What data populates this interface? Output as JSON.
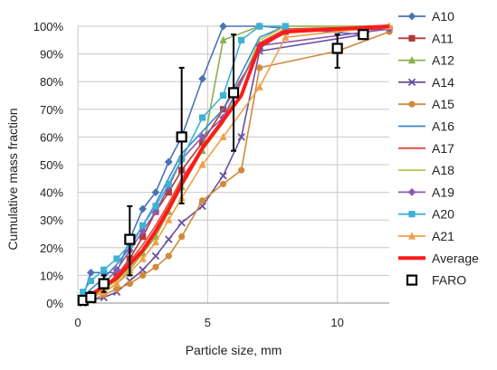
{
  "chart_data": {
    "type": "line",
    "title": "",
    "xlabel": "Particle size, mm",
    "ylabel": "Cumulative mass fraction",
    "xlim": [
      0,
      12
    ],
    "ylim": [
      0,
      100
    ],
    "x_ticks": [
      0,
      5,
      10
    ],
    "x_tick_labels": [
      "0",
      "5",
      "10"
    ],
    "y_ticks": [
      0,
      10,
      20,
      30,
      40,
      50,
      60,
      70,
      80,
      90,
      100
    ],
    "y_tick_labels": [
      "0%",
      "10%",
      "20%",
      "30%",
      "40%",
      "50%",
      "60%",
      "70%",
      "80%",
      "90%",
      "100%"
    ],
    "grid": "major-horizontal-and-vertical",
    "legend_position": "right",
    "series": [
      {
        "name": "A10",
        "color": "#4a73b5",
        "marker": "diamond",
        "x": [
          0.2,
          0.5,
          1,
          1.5,
          2,
          2.5,
          3,
          3.5,
          4,
          4.8,
          5.6,
          7,
          11
        ],
        "y": [
          2,
          11,
          11,
          11,
          23,
          34,
          40,
          51,
          60,
          81,
          100,
          100,
          97
        ]
      },
      {
        "name": "A11",
        "color": "#b33a3a",
        "marker": "square",
        "x": [
          0.2,
          0.5,
          1,
          1.5,
          2,
          2.5,
          3,
          3.5,
          4,
          4.8,
          5.6,
          7,
          8,
          12
        ],
        "y": [
          1,
          3,
          6,
          10,
          16,
          24,
          33,
          40,
          48,
          58,
          70,
          92,
          98,
          99
        ]
      },
      {
        "name": "A12",
        "color": "#8cb04a",
        "marker": "triangle",
        "x": [
          0.2,
          0.5,
          1,
          1.5,
          2,
          2.5,
          3,
          3.5,
          4,
          4.8,
          5.6,
          7,
          12
        ],
        "y": [
          1,
          2,
          4,
          7,
          12,
          18,
          24,
          33,
          42,
          55,
          95,
          100,
          100
        ]
      },
      {
        "name": "A14",
        "color": "#6a4f9e",
        "marker": "x",
        "x": [
          0.2,
          0.5,
          1,
          1.5,
          2,
          2.5,
          3,
          3.5,
          4,
          4.8,
          5.6,
          6.3,
          7,
          11
        ],
        "y": [
          0,
          1,
          2,
          4,
          8,
          12,
          17,
          23,
          29,
          35,
          46,
          60,
          91,
          97
        ]
      },
      {
        "name": "A15",
        "color": "#d08a3c",
        "marker": "circle",
        "x": [
          0.2,
          0.5,
          1,
          1.5,
          2,
          2.5,
          3,
          3.5,
          4,
          4.8,
          5.6,
          6.3,
          7,
          10,
          12
        ],
        "y": [
          0,
          1,
          3,
          5,
          7,
          10,
          13,
          17,
          24,
          37,
          43,
          48,
          85,
          91,
          98
        ]
      },
      {
        "name": "A16",
        "color": "#3f86c8",
        "marker": "none",
        "x": [
          0.2,
          0.5,
          1,
          1.5,
          2,
          2.5,
          3,
          3.5,
          4,
          4.8,
          5.6,
          7,
          8,
          12
        ],
        "y": [
          2,
          5,
          9,
          14,
          20,
          28,
          36,
          45,
          54,
          62,
          70,
          96,
          100,
          100
        ]
      },
      {
        "name": "A17",
        "color": "#e04a3c",
        "marker": "none",
        "x": [
          0.2,
          0.5,
          1,
          1.5,
          2,
          2.5,
          3,
          3.5,
          4,
          4.8,
          5.6,
          7,
          8,
          12
        ],
        "y": [
          1,
          3,
          6,
          10,
          15,
          21,
          28,
          36,
          45,
          56,
          66,
          94,
          99,
          100
        ]
      },
      {
        "name": "A18",
        "color": "#a8cc4e",
        "marker": "none",
        "x": [
          0.2,
          0.5,
          1,
          1.5,
          2,
          2.5,
          3,
          3.5,
          4,
          4.8,
          5.6,
          7,
          8,
          12
        ],
        "y": [
          1,
          2,
          5,
          8,
          13,
          19,
          26,
          35,
          44,
          55,
          65,
          95,
          100,
          100
        ]
      },
      {
        "name": "A19",
        "color": "#8a5bb0",
        "marker": "diamond",
        "x": [
          0.2,
          0.5,
          1,
          1.5,
          2,
          2.5,
          3,
          3.5,
          4,
          4.8,
          5.6,
          7,
          12
        ],
        "y": [
          1,
          3,
          7,
          12,
          19,
          26,
          33,
          42,
          52,
          60,
          67,
          93,
          99
        ]
      },
      {
        "name": "A20",
        "color": "#3eb1d6",
        "marker": "square",
        "x": [
          0.2,
          0.5,
          1,
          1.5,
          2,
          2.5,
          3,
          3.5,
          4,
          4.8,
          5.6,
          6.3,
          7,
          8
        ],
        "y": [
          4,
          8,
          12,
          16,
          21,
          28,
          35,
          43,
          52,
          67,
          75,
          95,
          100,
          100
        ]
      },
      {
        "name": "A21",
        "color": "#f0a046",
        "marker": "triangle",
        "x": [
          0.2,
          0.5,
          1,
          1.5,
          2,
          2.5,
          3,
          3.5,
          4,
          4.8,
          5.6,
          7,
          8,
          12
        ],
        "y": [
          1,
          2,
          4,
          7,
          11,
          16,
          22,
          30,
          38,
          50,
          60,
          78,
          96,
          100
        ]
      },
      {
        "name": "Average",
        "color": "#ff1a1a",
        "marker": "none",
        "bold": true,
        "x": [
          0.2,
          0.5,
          1,
          1.5,
          2,
          2.5,
          3,
          3.5,
          4,
          4.8,
          5.6,
          6.3,
          7,
          8,
          12
        ],
        "y": [
          1,
          3,
          6,
          9,
          14,
          19,
          26,
          34,
          43,
          56,
          66,
          75,
          93,
          98,
          100
        ]
      }
    ],
    "faro": {
      "name": "FARO",
      "color": "#000000",
      "marker": "open-square",
      "points": [
        {
          "x": 0.2,
          "y": 1,
          "low": 0,
          "high": 2
        },
        {
          "x": 0.5,
          "y": 2,
          "low": 1,
          "high": 4
        },
        {
          "x": 1,
          "y": 7,
          "low": 4,
          "high": 10
        },
        {
          "x": 2,
          "y": 23,
          "low": 10,
          "high": 35
        },
        {
          "x": 4,
          "y": 60,
          "low": 36,
          "high": 85
        },
        {
          "x": 6,
          "y": 76,
          "low": 55,
          "high": 97
        },
        {
          "x": 10,
          "y": 92,
          "low": 85,
          "high": 97
        },
        {
          "x": 11,
          "y": 97,
          "low": 96,
          "high": 98
        }
      ]
    }
  }
}
